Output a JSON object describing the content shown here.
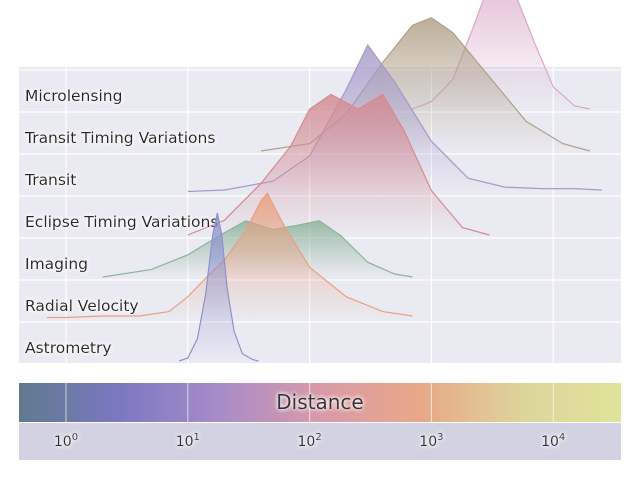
{
  "chart_data": {
    "type": "area",
    "subtype": "ridgeline",
    "x_scale": "log",
    "xlim": [
      0.5,
      30000
    ],
    "x_ticks": [
      {
        "value": 1,
        "base": "10",
        "exp": "0"
      },
      {
        "value": 10,
        "base": "10",
        "exp": "1"
      },
      {
        "value": 100,
        "base": "10",
        "exp": "2"
      },
      {
        "value": 1000,
        "base": "10",
        "exp": "3"
      },
      {
        "value": 10000,
        "base": "10",
        "exp": "4"
      }
    ],
    "colorbar_label": "Distance",
    "grid": true,
    "background_color": "#eaeaf2",
    "colorbar_colors": [
      "#5f7a8f",
      "#7b78c0",
      "#a88cc8",
      "#d89aa8",
      "#e8a888",
      "#dcd49a",
      "#dfe49a"
    ],
    "series": [
      {
        "name": "Astrometry",
        "color": "#8c92cc",
        "points": [
          [
            8.5,
            0.0
          ],
          [
            10,
            0.02
          ],
          [
            12,
            0.15
          ],
          [
            14,
            0.45
          ],
          [
            16,
            0.85
          ],
          [
            17.5,
            1.0
          ],
          [
            19,
            0.85
          ],
          [
            21,
            0.5
          ],
          [
            24,
            0.2
          ],
          [
            28,
            0.05
          ],
          [
            34,
            0.01
          ],
          [
            38,
            0.0
          ]
        ]
      },
      {
        "name": "Radial Velocity",
        "color": "#e8a080",
        "points": [
          [
            0.7,
            0.01
          ],
          [
            1,
            0.01
          ],
          [
            2,
            0.02
          ],
          [
            4,
            0.02
          ],
          [
            7,
            0.05
          ],
          [
            10,
            0.15
          ],
          [
            15,
            0.3
          ],
          [
            20,
            0.4
          ],
          [
            30,
            0.6
          ],
          [
            40,
            0.8
          ],
          [
            45,
            0.85
          ],
          [
            60,
            0.65
          ],
          [
            100,
            0.35
          ],
          [
            200,
            0.15
          ],
          [
            400,
            0.05
          ],
          [
            700,
            0.02
          ]
        ]
      },
      {
        "name": "Imaging",
        "color": "#8cb49a",
        "points": [
          [
            2,
            0.0
          ],
          [
            5,
            0.05
          ],
          [
            10,
            0.15
          ],
          [
            20,
            0.3
          ],
          [
            30,
            0.38
          ],
          [
            50,
            0.32
          ],
          [
            80,
            0.35
          ],
          [
            120,
            0.38
          ],
          [
            180,
            0.28
          ],
          [
            300,
            0.1
          ],
          [
            500,
            0.02
          ],
          [
            700,
            0.0
          ]
        ]
      },
      {
        "name": "Eclipse Timing Variations",
        "color": "#d48a90",
        "points": [
          [
            10,
            0.0
          ],
          [
            20,
            0.1
          ],
          [
            40,
            0.35
          ],
          [
            70,
            0.6
          ],
          [
            100,
            0.85
          ],
          [
            150,
            0.95
          ],
          [
            250,
            0.85
          ],
          [
            400,
            0.95
          ],
          [
            600,
            0.7
          ],
          [
            1000,
            0.3
          ],
          [
            1800,
            0.05
          ],
          [
            3000,
            0.0
          ]
        ]
      },
      {
        "name": "Transit",
        "color": "#a59ac8",
        "points": [
          [
            10,
            0.01
          ],
          [
            20,
            0.02
          ],
          [
            50,
            0.08
          ],
          [
            100,
            0.25
          ],
          [
            200,
            0.7
          ],
          [
            300,
            1.0
          ],
          [
            500,
            0.75
          ],
          [
            1000,
            0.35
          ],
          [
            2000,
            0.1
          ],
          [
            4000,
            0.04
          ],
          [
            8000,
            0.03
          ],
          [
            15000,
            0.03
          ],
          [
            25000,
            0.02
          ]
        ]
      },
      {
        "name": "Transit Timing Variations",
        "color": "#b0a088",
        "points": [
          [
            40,
            0.0
          ],
          [
            100,
            0.05
          ],
          [
            200,
            0.25
          ],
          [
            400,
            0.6
          ],
          [
            700,
            0.85
          ],
          [
            1000,
            0.9
          ],
          [
            1500,
            0.8
          ],
          [
            3000,
            0.5
          ],
          [
            6000,
            0.2
          ],
          [
            12000,
            0.05
          ],
          [
            20000,
            0.0
          ]
        ]
      },
      {
        "name": "Microlensing",
        "color": "#d8a8c8",
        "points": [
          [
            700,
            0.0
          ],
          [
            1000,
            0.05
          ],
          [
            1500,
            0.2
          ],
          [
            2200,
            0.55
          ],
          [
            3000,
            0.85
          ],
          [
            3500,
            1.0
          ],
          [
            4500,
            0.85
          ],
          [
            7000,
            0.45
          ],
          [
            10000,
            0.15
          ],
          [
            15000,
            0.02
          ],
          [
            20000,
            0.0
          ]
        ]
      }
    ]
  }
}
